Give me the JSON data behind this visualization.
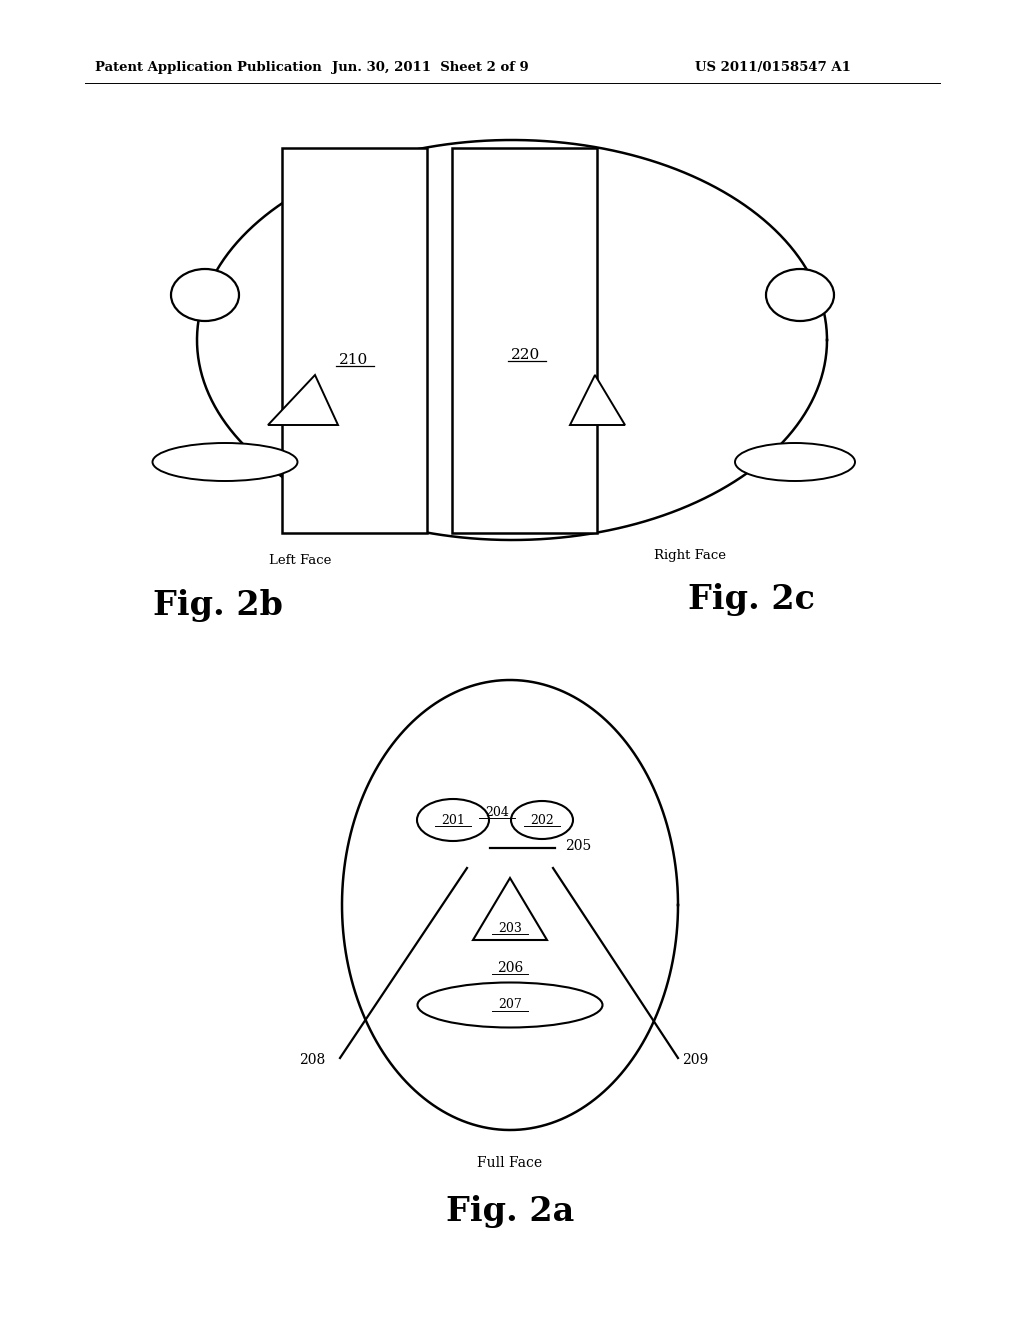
{
  "bg_color": "#ffffff",
  "line_color": "#000000",
  "header_left": "Patent Application Publication",
  "header_mid": "Jun. 30, 2011  Sheet 2 of 9",
  "header_right": "US 2011/0158547 A1",
  "fig2a_label": "Fig. 2a",
  "fig2a_sublabel": "Full Face",
  "fig2b_label": "Fig. 2b",
  "fig2b_sublabel": "Left Face",
  "fig2c_label": "Fig. 2c",
  "fig2c_sublabel": "Right Face"
}
